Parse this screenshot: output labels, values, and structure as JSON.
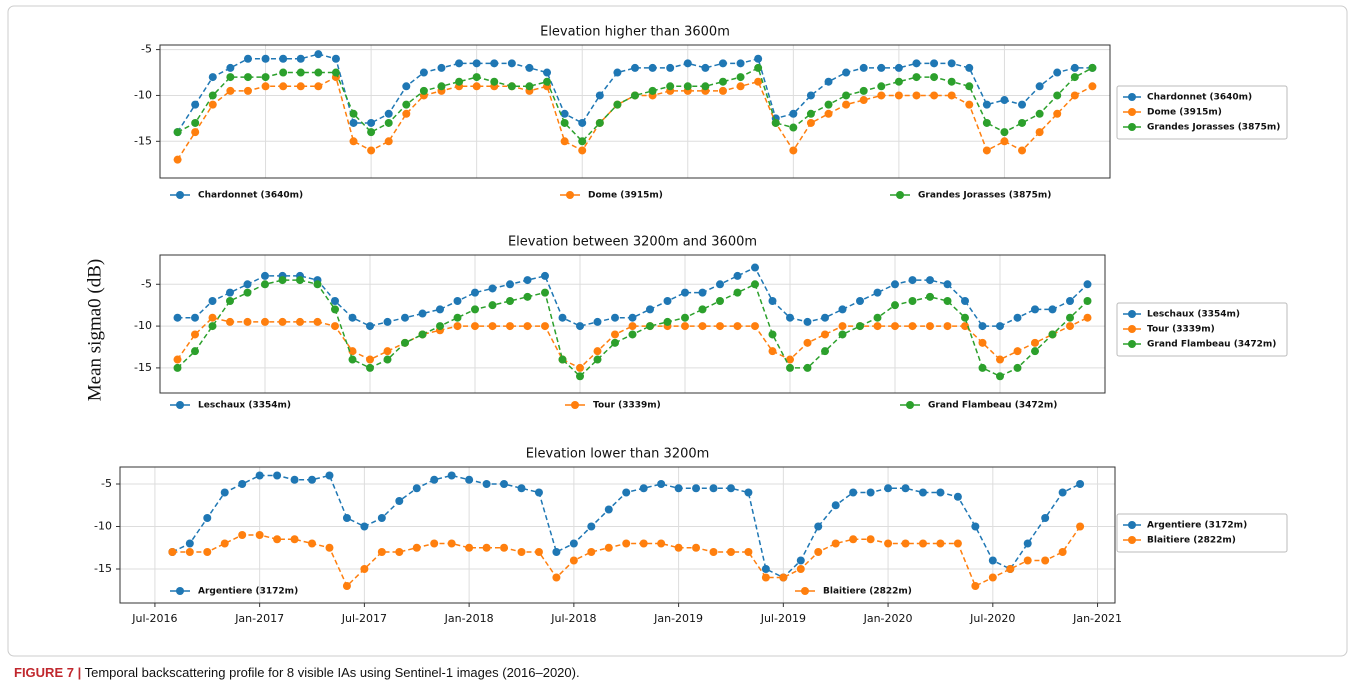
{
  "figure": {
    "ylabel": "Mean sigma0 (dB)",
    "caption_label": "FIGURE 7 |",
    "caption": "Temporal backscattering profile for 8 visible IAs using Sentinel-1 images (2016–2020)."
  },
  "chart_data": [
    {
      "type": "line",
      "title": "Elevation higher than 3600m",
      "xlim": [
        "2016-07",
        "2021-01"
      ],
      "ylim": [
        -19,
        -4.5
      ],
      "yticks": [
        -15,
        -10,
        -5
      ],
      "grid": true,
      "x": [
        "2016-08",
        "2016-09",
        "2016-10",
        "2016-11",
        "2016-12",
        "2017-01",
        "2017-02",
        "2017-03",
        "2017-04",
        "2017-05",
        "2017-06",
        "2017-07",
        "2017-08",
        "2017-09",
        "2017-10",
        "2017-11",
        "2017-12",
        "2018-01",
        "2018-02",
        "2018-03",
        "2018-04",
        "2018-05",
        "2018-06",
        "2018-07",
        "2018-08",
        "2018-09",
        "2018-10",
        "2018-11",
        "2018-12",
        "2019-01",
        "2019-02",
        "2019-03",
        "2019-04",
        "2019-05",
        "2019-06",
        "2019-07",
        "2019-08",
        "2019-09",
        "2019-10",
        "2019-11",
        "2019-12",
        "2020-01",
        "2020-02",
        "2020-03",
        "2020-04",
        "2020-05",
        "2020-06",
        "2020-07",
        "2020-08",
        "2020-09",
        "2020-10",
        "2020-11",
        "2020-12"
      ],
      "series": [
        {
          "name": "Chardonnet (3640m)",
          "color": "#1f77b4",
          "values": [
            -14,
            -11,
            -8,
            -7,
            -6,
            -6,
            -6,
            -6,
            -5.5,
            -6,
            -13,
            -13,
            -12,
            -9,
            -7.5,
            -7,
            -6.5,
            -6.5,
            -6.5,
            -6.5,
            -7,
            -7.5,
            -12,
            -13,
            -10,
            -7.5,
            -7,
            -7,
            -7,
            -6.5,
            -7,
            -6.5,
            -6.5,
            -6,
            -12.5,
            -12,
            -10,
            -8.5,
            -7.5,
            -7,
            -7,
            -7,
            -6.5,
            -6.5,
            -6.5,
            -7,
            -11,
            -10.5,
            -11,
            -9,
            -7.5,
            -7,
            -7
          ]
        },
        {
          "name": "Dome (3915m)",
          "color": "#ff7f0e",
          "values": [
            -17,
            -14,
            -11,
            -9.5,
            -9.5,
            -9,
            -9,
            -9,
            -9,
            -8,
            -15,
            -16,
            -15,
            -12,
            -10,
            -9.5,
            -9,
            -9,
            -9,
            -9,
            -9.5,
            -9,
            -15,
            -16,
            -13,
            -11,
            -10,
            -10,
            -9.5,
            -9.5,
            -9.5,
            -9.5,
            -9,
            -8.5,
            -13,
            -16,
            -13,
            -12,
            -11,
            -10.5,
            -10,
            -10,
            -10,
            -10,
            -10,
            -11,
            -16,
            -15,
            -16,
            -14,
            -12,
            -10,
            -9
          ]
        },
        {
          "name": "Grandes Jorasses (3875m)",
          "color": "#2ca02c",
          "values": [
            -14,
            -13,
            -10,
            -8,
            -8,
            -8,
            -7.5,
            -7.5,
            -7.5,
            -7.5,
            -12,
            -14,
            -13,
            -11,
            -9.5,
            -9,
            -8.5,
            -8,
            -8.5,
            -9,
            -9,
            -8.5,
            -13,
            -15,
            -13,
            -11,
            -10,
            -9.5,
            -9,
            -9,
            -9,
            -8.5,
            -8,
            -7,
            -13,
            -13.5,
            -12,
            -11,
            -10,
            -9.5,
            -9,
            -8.5,
            -8,
            -8,
            -8.5,
            -9,
            -13,
            -14,
            -13,
            -12,
            -10,
            -8,
            -7
          ]
        }
      ]
    },
    {
      "type": "line",
      "title": "Elevation between 3200m and 3600m",
      "xlim": [
        "2016-07",
        "2021-01"
      ],
      "ylim": [
        -18,
        -1.5
      ],
      "yticks": [
        -15,
        -10,
        -5
      ],
      "grid": true,
      "x": [
        "2016-08",
        "2016-09",
        "2016-10",
        "2016-11",
        "2016-12",
        "2017-01",
        "2017-02",
        "2017-03",
        "2017-04",
        "2017-05",
        "2017-06",
        "2017-07",
        "2017-08",
        "2017-09",
        "2017-10",
        "2017-11",
        "2017-12",
        "2018-01",
        "2018-02",
        "2018-03",
        "2018-04",
        "2018-05",
        "2018-06",
        "2018-07",
        "2018-08",
        "2018-09",
        "2018-10",
        "2018-11",
        "2018-12",
        "2019-01",
        "2019-02",
        "2019-03",
        "2019-04",
        "2019-05",
        "2019-06",
        "2019-07",
        "2019-08",
        "2019-09",
        "2019-10",
        "2019-11",
        "2019-12",
        "2020-01",
        "2020-02",
        "2020-03",
        "2020-04",
        "2020-05",
        "2020-06",
        "2020-07",
        "2020-08",
        "2020-09",
        "2020-10",
        "2020-11",
        "2020-12"
      ],
      "series": [
        {
          "name": "Leschaux (3354m)",
          "color": "#1f77b4",
          "values": [
            -9,
            -9,
            -7,
            -6,
            -5,
            -4,
            -4,
            -4,
            -4.5,
            -7,
            -9,
            -10,
            -9.5,
            -9,
            -8.5,
            -8,
            -7,
            -6,
            -5.5,
            -5,
            -4.5,
            -4,
            -9,
            -10,
            -9.5,
            -9,
            -9,
            -8,
            -7,
            -6,
            -6,
            -5,
            -4,
            -3,
            -7,
            -9,
            -9.5,
            -9,
            -8,
            -7,
            -6,
            -5,
            -4.5,
            -4.5,
            -5,
            -7,
            -10,
            -10,
            -9,
            -8,
            -8,
            -7,
            -5
          ]
        },
        {
          "name": "Tour (3339m)",
          "color": "#ff7f0e",
          "values": [
            -14,
            -11,
            -9,
            -9.5,
            -9.5,
            -9.5,
            -9.5,
            -9.5,
            -9.5,
            -10,
            -13,
            -14,
            -13,
            -12,
            -11,
            -10.5,
            -10,
            -10,
            -10,
            -10,
            -10,
            -10,
            -14,
            -15,
            -13,
            -11,
            -10,
            -10,
            -10,
            -10,
            -10,
            -10,
            -10,
            -10,
            -13,
            -14,
            -12,
            -11,
            -10,
            -10,
            -10,
            -10,
            -10,
            -10,
            -10,
            -10,
            -12,
            -14,
            -13,
            -12,
            -11,
            -10,
            -9
          ]
        },
        {
          "name": "Grand Flambeau (3472m)",
          "color": "#2ca02c",
          "values": [
            -15,
            -13,
            -10,
            -7,
            -6,
            -5,
            -4.5,
            -4.5,
            -5,
            -8,
            -14,
            -15,
            -14,
            -12,
            -11,
            -10,
            -9,
            -8,
            -7.5,
            -7,
            -6.5,
            -6,
            -14,
            -16,
            -14,
            -12,
            -11,
            -10,
            -9.5,
            -9,
            -8,
            -7,
            -6,
            -5,
            -11,
            -15,
            -15,
            -13,
            -11,
            -10,
            -9,
            -7.5,
            -7,
            -6.5,
            -7,
            -9,
            -15,
            -16,
            -15,
            -13,
            -11,
            -9,
            -7
          ]
        }
      ]
    },
    {
      "type": "line",
      "title": "Elevation lower than 3200m",
      "xlim": [
        "2016-05",
        "2021-02"
      ],
      "ylim": [
        -19,
        -3
      ],
      "yticks": [
        -15,
        -10,
        -5
      ],
      "grid": true,
      "xticks": [
        {
          "value": "2016-07",
          "label": "Jul-2016"
        },
        {
          "value": "2017-01",
          "label": "Jan-2017"
        },
        {
          "value": "2017-07",
          "label": "Jul-2017"
        },
        {
          "value": "2018-01",
          "label": "Jan-2018"
        },
        {
          "value": "2018-07",
          "label": "Jul-2018"
        },
        {
          "value": "2019-01",
          "label": "Jan-2019"
        },
        {
          "value": "2019-07",
          "label": "Jul-2019"
        },
        {
          "value": "2020-01",
          "label": "Jan-2020"
        },
        {
          "value": "2020-07",
          "label": "Jul-2020"
        },
        {
          "value": "2021-01",
          "label": "Jan-2021"
        }
      ],
      "x": [
        "2016-08",
        "2016-09",
        "2016-10",
        "2016-11",
        "2016-12",
        "2017-01",
        "2017-02",
        "2017-03",
        "2017-04",
        "2017-05",
        "2017-06",
        "2017-07",
        "2017-08",
        "2017-09",
        "2017-10",
        "2017-11",
        "2017-12",
        "2018-01",
        "2018-02",
        "2018-03",
        "2018-04",
        "2018-05",
        "2018-06",
        "2018-07",
        "2018-08",
        "2018-09",
        "2018-10",
        "2018-11",
        "2018-12",
        "2019-01",
        "2019-02",
        "2019-03",
        "2019-04",
        "2019-05",
        "2019-06",
        "2019-07",
        "2019-08",
        "2019-09",
        "2019-10",
        "2019-11",
        "2019-12",
        "2020-01",
        "2020-02",
        "2020-03",
        "2020-04",
        "2020-05",
        "2020-06",
        "2020-07",
        "2020-08",
        "2020-09",
        "2020-10",
        "2020-11",
        "2020-12"
      ],
      "series": [
        {
          "name": "Argentiere (3172m)",
          "color": "#1f77b4",
          "values": [
            -13,
            -12,
            -9,
            -6,
            -5,
            -4,
            -4,
            -4.5,
            -4.5,
            -4,
            -9,
            -10,
            -9,
            -7,
            -5.5,
            -4.5,
            -4,
            -4.5,
            -5,
            -5,
            -5.5,
            -6,
            -13,
            -12,
            -10,
            -8,
            -6,
            -5.5,
            -5,
            -5.5,
            -5.5,
            -5.5,
            -5.5,
            -6,
            -15,
            -16,
            -14,
            -10,
            -7.5,
            -6,
            -6,
            -5.5,
            -5.5,
            -6,
            -6,
            -6.5,
            -10,
            -14,
            -15,
            -12,
            -9,
            -6,
            -5
          ]
        },
        {
          "name": "Blaitiere (2822m)",
          "color": "#ff7f0e",
          "values": [
            -13,
            -13,
            -13,
            -12,
            -11,
            -11,
            -11.5,
            -11.5,
            -12,
            -12.5,
            -17,
            -15,
            -13,
            -13,
            -12.5,
            -12,
            -12,
            -12.5,
            -12.5,
            -12.5,
            -13,
            -13,
            -16,
            -14,
            -13,
            -12.5,
            -12,
            -12,
            -12,
            -12.5,
            -12.5,
            -13,
            -13,
            -13,
            -16,
            -16,
            -15,
            -13,
            -12,
            -11.5,
            -11.5,
            -12,
            -12,
            -12,
            -12,
            -12,
            -17,
            -16,
            -15,
            -14,
            -14,
            -13,
            -10
          ]
        }
      ]
    }
  ]
}
